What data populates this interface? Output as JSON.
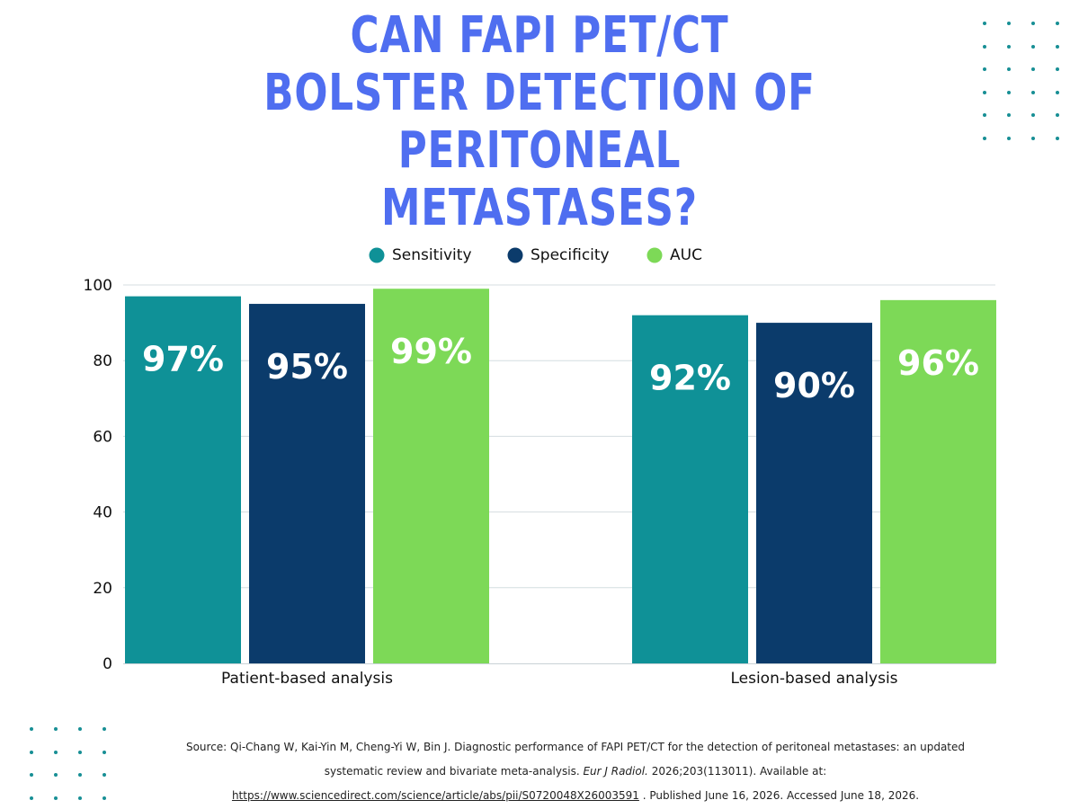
{
  "title": "CAN FAPI PET/CT BOLSTER DETECTION OF PERITONEAL METASTASES?",
  "colors": {
    "title": "#4f6ef0",
    "sensitivity": "#0f9197",
    "specificity": "#0b3b6b",
    "auc": "#7dd957",
    "dots": "#178f95",
    "grid": "#d4dde0"
  },
  "chart_data": {
    "type": "bar",
    "categories": [
      "Patient-based analysis",
      "Lesion-based analysis"
    ],
    "series": [
      {
        "name": "Sensitivity",
        "values": [
          97,
          92
        ],
        "labels": [
          "97%",
          "92%"
        ]
      },
      {
        "name": "Specificity",
        "values": [
          95,
          90
        ],
        "labels": [
          "95%",
          "90%"
        ]
      },
      {
        "name": "AUC",
        "values": [
          99,
          96
        ],
        "labels": [
          "99%",
          "96%"
        ]
      }
    ],
    "ylim": [
      0,
      100
    ],
    "yticks": [
      0,
      20,
      40,
      60,
      80,
      100
    ],
    "legend": "top-center",
    "grid": true
  },
  "source": {
    "prefix": "Source:  Qi-Chang W, Kai-Yin M, Cheng-Yi W, Bin J. Diagnostic performance of FAPI PET/CT for the detection of peritoneal metastases: an updated systematic review and bivariate meta-analysis. ",
    "journal": "Eur J Radiol.",
    "citation": " 2026;203(113011). Available at: ",
    "url": "https://www.sciencedirect.com/science/article/abs/pii/S0720048X26003591",
    "suffix": " . Published June 16, 2026. Accessed June 18, 2026."
  }
}
